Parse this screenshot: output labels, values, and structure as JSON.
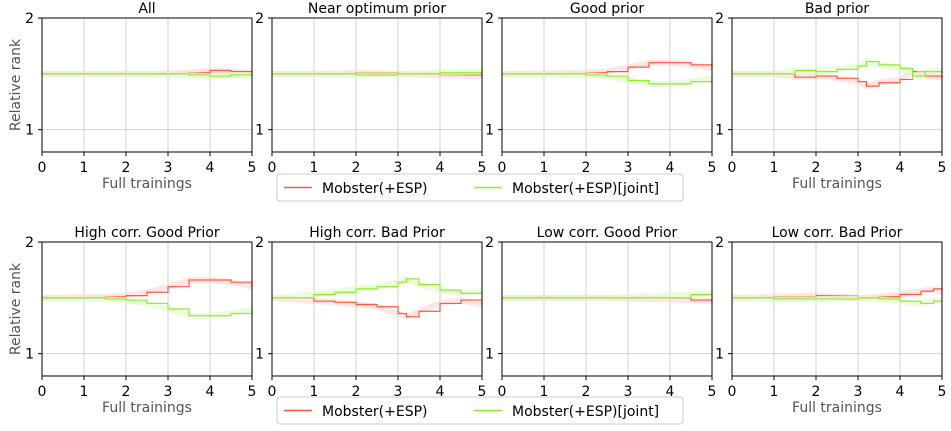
{
  "colors": {
    "mobster": "#ff5a3c",
    "joint": "#8cf02a",
    "band_mobster": "#ffd6d6",
    "band_joint": "#dff8c4"
  },
  "common": {
    "xlabel": "Full trainings",
    "ylabel": "Relative rank"
  },
  "legend": {
    "entries": [
      "Mobster(+ESP)",
      "Mobster(+ESP)[joint]"
    ],
    "placement": "below each row"
  },
  "chart_data": [
    {
      "type": "line",
      "title": "All",
      "xlim": [
        0,
        5
      ],
      "ylim": [
        0.8,
        2
      ],
      "xticks": [
        "0",
        "1",
        "2",
        "3",
        "4",
        "5"
      ],
      "yticks": [
        "1",
        "2"
      ],
      "grid": true,
      "x": [
        0,
        1.5,
        2.5,
        3.5,
        4,
        4.5,
        5
      ],
      "series": [
        {
          "name": "Mobster(+ESP)",
          "values": [
            1.5,
            1.5,
            1.5,
            1.51,
            1.53,
            1.52,
            1.51
          ]
        },
        {
          "name": "Mobster(+ESP)[joint]",
          "values": [
            1.5,
            1.5,
            1.5,
            1.49,
            1.48,
            1.49,
            1.49
          ]
        }
      ]
    },
    {
      "type": "line",
      "title": "Near optimum prior",
      "xlim": [
        0,
        5
      ],
      "ylim": [
        0.8,
        2
      ],
      "xticks": [
        "0",
        "1",
        "2",
        "3",
        "4",
        "5"
      ],
      "yticks": [
        "1",
        "2"
      ],
      "grid": true,
      "x": [
        0,
        1,
        2,
        3,
        4,
        5
      ],
      "series": [
        {
          "name": "Mobster(+ESP)",
          "values": [
            1.5,
            1.5,
            1.51,
            1.5,
            1.49,
            1.48
          ]
        },
        {
          "name": "Mobster(+ESP)[joint]",
          "values": [
            1.5,
            1.5,
            1.49,
            1.5,
            1.51,
            1.52
          ]
        }
      ]
    },
    {
      "type": "line",
      "title": "Good prior",
      "xlim": [
        0,
        5
      ],
      "ylim": [
        0.8,
        2
      ],
      "xticks": [
        "0",
        "1",
        "2",
        "3",
        "4",
        "5"
      ],
      "yticks": [
        "1",
        "2"
      ],
      "grid": true,
      "x": [
        0,
        2,
        2.5,
        3,
        3.5,
        4,
        4.5,
        5
      ],
      "series": [
        {
          "name": "Mobster(+ESP)",
          "values": [
            1.5,
            1.51,
            1.52,
            1.56,
            1.6,
            1.6,
            1.58,
            1.55
          ]
        },
        {
          "name": "Mobster(+ESP)[joint]",
          "values": [
            1.5,
            1.49,
            1.48,
            1.44,
            1.41,
            1.41,
            1.43,
            1.46
          ]
        }
      ]
    },
    {
      "type": "line",
      "title": "Bad prior",
      "xlim": [
        0,
        5
      ],
      "ylim": [
        0.8,
        2
      ],
      "xticks": [
        "0",
        "1",
        "2",
        "3",
        "4",
        "5"
      ],
      "yticks": [
        "1",
        "2"
      ],
      "grid": true,
      "x": [
        0,
        1,
        1.5,
        2,
        2.5,
        3,
        3.2,
        3.5,
        4,
        4.3,
        4.6,
        5
      ],
      "series": [
        {
          "name": "Mobster(+ESP)",
          "values": [
            1.5,
            1.5,
            1.47,
            1.48,
            1.46,
            1.43,
            1.39,
            1.42,
            1.45,
            1.52,
            1.48,
            1.47
          ]
        },
        {
          "name": "Mobster(+ESP)[joint]",
          "values": [
            1.5,
            1.5,
            1.53,
            1.52,
            1.54,
            1.57,
            1.61,
            1.58,
            1.55,
            1.48,
            1.52,
            1.53
          ]
        }
      ]
    },
    {
      "type": "line",
      "title": "High corr. Good Prior",
      "xlim": [
        0,
        5
      ],
      "ylim": [
        0.8,
        2
      ],
      "xticks": [
        "0",
        "1",
        "2",
        "3",
        "4",
        "5"
      ],
      "yticks": [
        "1",
        "2"
      ],
      "grid": true,
      "x": [
        0,
        1.5,
        2,
        2.5,
        3,
        3.5,
        4,
        4.5,
        5
      ],
      "series": [
        {
          "name": "Mobster(+ESP)",
          "values": [
            1.5,
            1.51,
            1.52,
            1.55,
            1.6,
            1.66,
            1.66,
            1.64,
            1.6
          ]
        },
        {
          "name": "Mobster(+ESP)[joint]",
          "values": [
            1.5,
            1.49,
            1.48,
            1.45,
            1.4,
            1.34,
            1.34,
            1.36,
            1.4
          ]
        }
      ]
    },
    {
      "type": "line",
      "title": "High corr. Bad Prior",
      "xlim": [
        0,
        5
      ],
      "ylim": [
        0.8,
        2
      ],
      "xticks": [
        "0",
        "1",
        "2",
        "3",
        "4",
        "5"
      ],
      "yticks": [
        "1",
        "2"
      ],
      "grid": true,
      "x": [
        0,
        1,
        1.5,
        2,
        2.5,
        3,
        3.2,
        3.5,
        4,
        4.5,
        5
      ],
      "series": [
        {
          "name": "Mobster(+ESP)",
          "values": [
            1.5,
            1.47,
            1.46,
            1.44,
            1.42,
            1.36,
            1.33,
            1.38,
            1.45,
            1.48,
            1.44
          ]
        },
        {
          "name": "Mobster(+ESP)[joint]",
          "values": [
            1.5,
            1.53,
            1.55,
            1.58,
            1.6,
            1.64,
            1.67,
            1.62,
            1.57,
            1.54,
            1.56
          ]
        }
      ]
    },
    {
      "type": "line",
      "title": "Low corr. Good Prior",
      "xlim": [
        0,
        5
      ],
      "ylim": [
        0.8,
        2
      ],
      "xticks": [
        "0",
        "1",
        "2",
        "3",
        "4",
        "5"
      ],
      "yticks": [
        "1",
        "2"
      ],
      "grid": true,
      "x": [
        0,
        1,
        2.4,
        4.5,
        5
      ],
      "series": [
        {
          "name": "Mobster(+ESP)",
          "values": [
            1.5,
            1.5,
            1.5,
            1.48,
            1.47
          ]
        },
        {
          "name": "Mobster(+ESP)[joint]",
          "values": [
            1.5,
            1.5,
            1.5,
            1.53,
            1.54
          ]
        }
      ]
    },
    {
      "type": "line",
      "title": "Low corr. Bad Prior",
      "xlim": [
        0,
        5
      ],
      "ylim": [
        0.8,
        2
      ],
      "xticks": [
        "0",
        "1",
        "2",
        "3",
        "4",
        "5"
      ],
      "yticks": [
        "1",
        "2"
      ],
      "grid": true,
      "x": [
        0,
        1,
        2,
        3,
        3.5,
        4,
        4.5,
        4.8,
        5
      ],
      "series": [
        {
          "name": "Mobster(+ESP)",
          "values": [
            1.5,
            1.51,
            1.52,
            1.5,
            1.51,
            1.53,
            1.56,
            1.58,
            1.55
          ]
        },
        {
          "name": "Mobster(+ESP)[joint]",
          "values": [
            1.5,
            1.49,
            1.49,
            1.5,
            1.49,
            1.47,
            1.45,
            1.47,
            1.47
          ]
        }
      ]
    }
  ]
}
